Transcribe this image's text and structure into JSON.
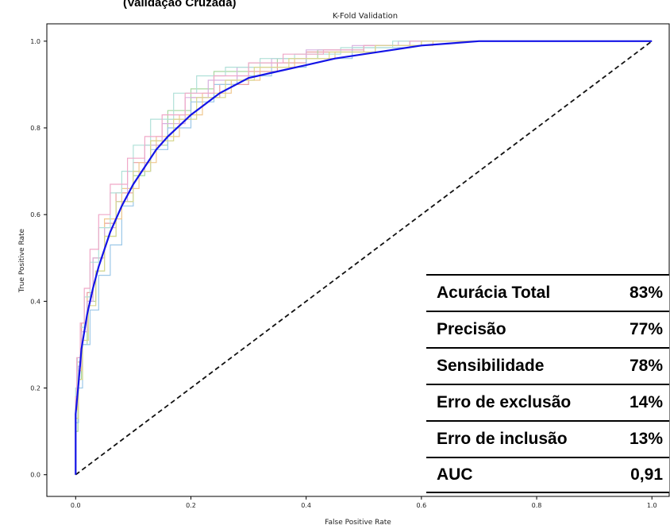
{
  "header_fragment": "(Validação Cruzada)",
  "chart_data": {
    "type": "line",
    "title": "K-Fold Validation",
    "xlabel": "False Positive Rate",
    "ylabel": "True Positive Rate",
    "xlim": [
      -0.05,
      1.03
    ],
    "ylim": [
      -0.05,
      1.04
    ],
    "x_ticks": [
      "0.0",
      "0.2",
      "0.4",
      "0.6",
      "0.8",
      "1.0"
    ],
    "y_ticks": [
      "0.0",
      "0.2",
      "0.4",
      "0.6",
      "0.8",
      "1.0"
    ],
    "grid": false,
    "mean_curve": {
      "color": "#1414e6",
      "x": [
        0.0,
        0.0,
        0.005,
        0.01,
        0.02,
        0.03,
        0.04,
        0.05,
        0.06,
        0.08,
        0.1,
        0.12,
        0.14,
        0.16,
        0.18,
        0.2,
        0.25,
        0.3,
        0.35,
        0.4,
        0.45,
        0.5,
        0.55,
        0.6,
        0.65,
        0.7,
        0.8,
        0.9,
        1.0
      ],
      "y": [
        0.0,
        0.14,
        0.21,
        0.29,
        0.37,
        0.43,
        0.48,
        0.52,
        0.56,
        0.62,
        0.67,
        0.71,
        0.75,
        0.78,
        0.805,
        0.83,
        0.88,
        0.915,
        0.93,
        0.945,
        0.96,
        0.97,
        0.98,
        0.99,
        0.995,
        1.0,
        1.0,
        1.0,
        1.0
      ]
    },
    "chance_line": {
      "color": "#111111",
      "x": [
        0,
        1
      ],
      "y": [
        0,
        1
      ]
    },
    "fold_curves": [
      {
        "color": "#e8a0a0",
        "x": [
          0,
          0.003,
          0.01,
          0.02,
          0.03,
          0.05,
          0.07,
          0.1,
          0.13,
          0.16,
          0.2,
          0.25,
          0.3,
          0.35,
          0.4,
          0.5,
          0.6,
          0.68,
          0.8,
          1.0
        ],
        "y": [
          0,
          0.17,
          0.26,
          0.35,
          0.42,
          0.5,
          0.58,
          0.65,
          0.72,
          0.77,
          0.82,
          0.87,
          0.9,
          0.93,
          0.95,
          0.975,
          0.99,
          1.0,
          1.0,
          1.0
        ]
      },
      {
        "color": "#a8d8a0",
        "x": [
          0,
          0.004,
          0.01,
          0.02,
          0.035,
          0.05,
          0.07,
          0.1,
          0.12,
          0.16,
          0.2,
          0.24,
          0.3,
          0.35,
          0.42,
          0.5,
          0.6,
          0.7,
          1.0
        ],
        "y": [
          0,
          0.1,
          0.22,
          0.3,
          0.4,
          0.47,
          0.55,
          0.63,
          0.69,
          0.76,
          0.84,
          0.89,
          0.93,
          0.95,
          0.96,
          0.98,
          0.99,
          1.0,
          1.0
        ]
      },
      {
        "color": "#9cc8e8",
        "x": [
          0,
          0.005,
          0.012,
          0.025,
          0.04,
          0.06,
          0.08,
          0.1,
          0.13,
          0.16,
          0.2,
          0.24,
          0.28,
          0.34,
          0.4,
          0.48,
          0.58,
          0.7,
          1.0
        ],
        "y": [
          0,
          0.12,
          0.2,
          0.3,
          0.38,
          0.46,
          0.53,
          0.62,
          0.7,
          0.75,
          0.8,
          0.86,
          0.9,
          0.92,
          0.94,
          0.96,
          0.985,
          1.0,
          1.0
        ]
      },
      {
        "color": "#f0c890",
        "x": [
          0,
          0.003,
          0.01,
          0.02,
          0.03,
          0.05,
          0.08,
          0.11,
          0.14,
          0.18,
          0.22,
          0.27,
          0.32,
          0.38,
          0.45,
          0.52,
          0.62,
          0.72,
          1.0
        ],
        "y": [
          0,
          0.15,
          0.24,
          0.33,
          0.41,
          0.5,
          0.59,
          0.66,
          0.72,
          0.78,
          0.83,
          0.88,
          0.91,
          0.94,
          0.96,
          0.975,
          0.99,
          1.0,
          1.0
        ]
      },
      {
        "color": "#d8b0e0",
        "x": [
          0,
          0.004,
          0.01,
          0.02,
          0.03,
          0.05,
          0.07,
          0.09,
          0.12,
          0.15,
          0.19,
          0.23,
          0.28,
          0.34,
          0.4,
          0.48,
          0.56,
          0.66,
          1.0
        ],
        "y": [
          0,
          0.16,
          0.25,
          0.33,
          0.4,
          0.5,
          0.57,
          0.63,
          0.7,
          0.76,
          0.81,
          0.87,
          0.91,
          0.94,
          0.96,
          0.98,
          0.99,
          1.0,
          1.0
        ]
      },
      {
        "color": "#b0e0d8",
        "x": [
          0,
          0.003,
          0.008,
          0.015,
          0.025,
          0.04,
          0.06,
          0.08,
          0.1,
          0.13,
          0.17,
          0.21,
          0.26,
          0.32,
          0.38,
          0.46,
          0.55,
          0.66,
          1.0
        ],
        "y": [
          0,
          0.2,
          0.27,
          0.34,
          0.41,
          0.49,
          0.57,
          0.65,
          0.7,
          0.76,
          0.82,
          0.88,
          0.92,
          0.94,
          0.96,
          0.97,
          0.985,
          1.0,
          1.0
        ]
      },
      {
        "color": "#f0a8c8",
        "x": [
          0,
          0.002,
          0.008,
          0.015,
          0.025,
          0.04,
          0.06,
          0.09,
          0.12,
          0.15,
          0.19,
          0.24,
          0.3,
          0.36,
          0.43,
          0.5,
          0.58,
          0.66,
          1.0
        ],
        "y": [
          0,
          0.18,
          0.27,
          0.35,
          0.43,
          0.52,
          0.6,
          0.67,
          0.73,
          0.78,
          0.83,
          0.88,
          0.92,
          0.95,
          0.97,
          0.98,
          0.99,
          1.0,
          1.0
        ]
      },
      {
        "color": "#d8d890",
        "x": [
          0,
          0.005,
          0.012,
          0.022,
          0.035,
          0.05,
          0.07,
          0.1,
          0.13,
          0.17,
          0.21,
          0.26,
          0.31,
          0.37,
          0.44,
          0.52,
          0.6,
          0.7,
          1.0
        ],
        "y": [
          0,
          0.13,
          0.22,
          0.31,
          0.39,
          0.47,
          0.55,
          0.63,
          0.7,
          0.77,
          0.82,
          0.87,
          0.91,
          0.94,
          0.96,
          0.975,
          0.99,
          1.0,
          1.0
        ]
      }
    ]
  },
  "metrics_table": {
    "rows": [
      {
        "label": "Acurácia Total",
        "value": "83%"
      },
      {
        "label": "Precisão",
        "value": "77%"
      },
      {
        "label": "Sensibilidade",
        "value": "78%"
      },
      {
        "label": "Erro de exclusão",
        "value": "14%"
      },
      {
        "label": "Erro de inclusão",
        "value": "13%"
      },
      {
        "label": "AUC",
        "value": "0,91"
      }
    ]
  }
}
